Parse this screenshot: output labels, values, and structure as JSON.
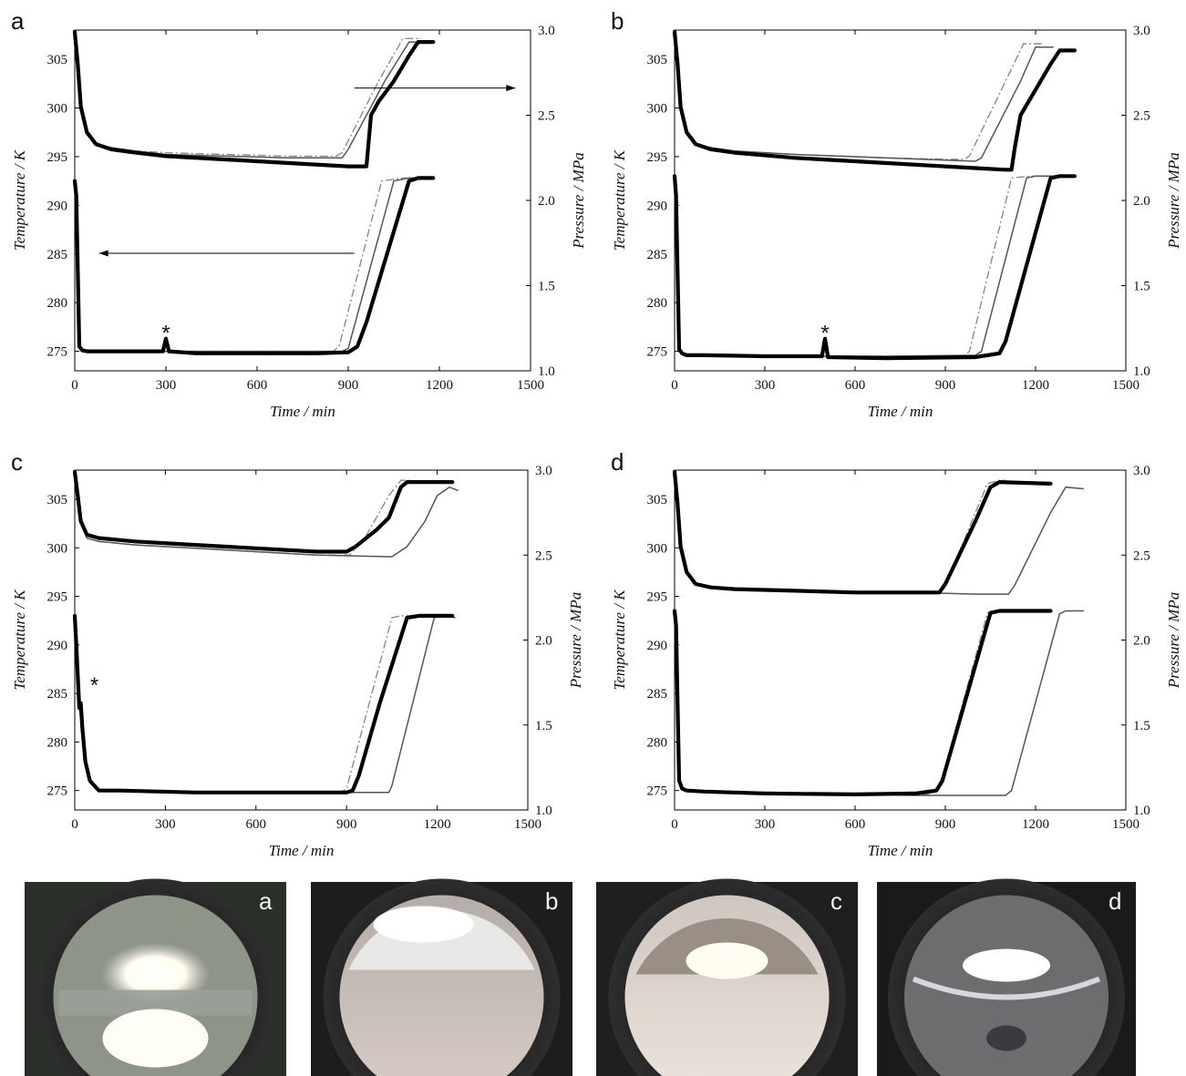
{
  "chart_data": [
    {
      "panel": "a",
      "type": "line",
      "xlabel": "Time / min",
      "ylabel_left": "Temperature / K",
      "ylabel_right": "Pressure / MPa",
      "xlim": [
        0,
        1500
      ],
      "xticks": [
        "0",
        "300",
        "600",
        "900",
        "1200",
        "1500"
      ],
      "ylim_left": [
        273,
        308
      ],
      "yticks_left": [
        "275",
        "280",
        "285",
        "290",
        "295",
        "300",
        "305"
      ],
      "ylim_right": [
        1.0,
        3.0
      ],
      "yticks_right": [
        "1.0",
        "1.5",
        "2.0",
        "2.5",
        "3.0"
      ],
      "annotations": [
        "*"
      ],
      "star_at": [
        300,
        276.5
      ],
      "arrows": [
        {
          "from": [
            920,
            2.66
          ],
          "to": [
            1450,
            2.66
          ]
        },
        {
          "from": [
            920,
            1.69
          ],
          "to": [
            80,
            1.69
          ]
        }
      ],
      "series": [
        {
          "axis": "right",
          "style": "bold",
          "x": [
            0,
            10,
            20,
            40,
            70,
            120,
            200,
            300,
            500,
            700,
            900,
            940,
            960,
            975,
            1000,
            1050,
            1100,
            1130,
            1180
          ],
          "y": [
            2.99,
            2.8,
            2.55,
            2.4,
            2.33,
            2.3,
            2.28,
            2.26,
            2.24,
            2.22,
            2.2,
            2.2,
            2.2,
            2.5,
            2.58,
            2.7,
            2.85,
            2.93,
            2.93
          ]
        },
        {
          "axis": "right",
          "style": "dash",
          "x": [
            0,
            10,
            20,
            40,
            70,
            120,
            200,
            300,
            500,
            700,
            860,
            880,
            1000,
            1080,
            1140
          ],
          "y": [
            2.99,
            2.8,
            2.55,
            2.4,
            2.33,
            2.31,
            2.29,
            2.28,
            2.27,
            2.26,
            2.26,
            2.28,
            2.7,
            2.95,
            2.95
          ]
        },
        {
          "axis": "right",
          "style": "gray",
          "x": [
            0,
            10,
            20,
            40,
            70,
            120,
            200,
            300,
            500,
            700,
            880,
            900,
            1020,
            1100,
            1150
          ],
          "y": [
            2.99,
            2.8,
            2.55,
            2.4,
            2.33,
            2.31,
            2.29,
            2.27,
            2.26,
            2.25,
            2.25,
            2.3,
            2.7,
            2.93,
            2.93
          ]
        },
        {
          "axis": "left",
          "style": "bold",
          "x": [
            0,
            5,
            15,
            25,
            40,
            100,
            200,
            290,
            300,
            310,
            400,
            600,
            800,
            900,
            930,
            960,
            1100,
            1130,
            1180
          ],
          "y": [
            292.5,
            291,
            275.5,
            275.1,
            275,
            275,
            275,
            275,
            276.3,
            275,
            274.8,
            274.8,
            274.8,
            274.9,
            275.5,
            278,
            292.5,
            292.8,
            292.8
          ]
        },
        {
          "axis": "left",
          "style": "dash",
          "x": [
            0,
            5,
            15,
            25,
            40,
            100,
            300,
            600,
            850,
            870,
            1010,
            1080,
            1140
          ],
          "y": [
            292.5,
            291,
            275.5,
            275.1,
            275,
            275,
            275,
            275,
            275,
            275.5,
            292.5,
            292.8,
            292.8
          ]
        },
        {
          "axis": "left",
          "style": "gray",
          "x": [
            0,
            5,
            15,
            25,
            40,
            100,
            300,
            600,
            880,
            900,
            1050,
            1100,
            1160
          ],
          "y": [
            292.5,
            291,
            275.5,
            275.1,
            275,
            275,
            275,
            275,
            275,
            275.3,
            292.5,
            292.8,
            292.8
          ]
        }
      ]
    },
    {
      "panel": "b",
      "type": "line",
      "xlabel": "Time / min",
      "ylabel_left": "Temperature / K",
      "ylabel_right": "Pressure / MPa",
      "xlim": [
        0,
        1500
      ],
      "xticks": [
        "0",
        "300",
        "600",
        "900",
        "1200",
        "1500"
      ],
      "ylim_left": [
        273,
        308
      ],
      "yticks_left": [
        "275",
        "280",
        "285",
        "290",
        "295",
        "300",
        "305"
      ],
      "ylim_right": [
        1.0,
        3.0
      ],
      "yticks_right": [
        "1.0",
        "1.5",
        "2.0",
        "2.5",
        "3.0"
      ],
      "annotations": [
        "*"
      ],
      "star_at": [
        500,
        276.5
      ],
      "arrows": [],
      "series": [
        {
          "axis": "right",
          "style": "bold",
          "x": [
            0,
            10,
            20,
            40,
            70,
            120,
            200,
            400,
            700,
            1000,
            1100,
            1120,
            1130,
            1150,
            1200,
            1250,
            1280,
            1330
          ],
          "y": [
            2.99,
            2.8,
            2.55,
            2.4,
            2.33,
            2.3,
            2.28,
            2.25,
            2.22,
            2.19,
            2.18,
            2.18,
            2.3,
            2.5,
            2.65,
            2.8,
            2.88,
            2.88
          ]
        },
        {
          "axis": "right",
          "style": "dash",
          "x": [
            0,
            10,
            20,
            40,
            70,
            120,
            200,
            400,
            700,
            960,
            980,
            1100,
            1160,
            1220
          ],
          "y": [
            2.99,
            2.8,
            2.55,
            2.4,
            2.33,
            2.31,
            2.29,
            2.27,
            2.25,
            2.24,
            2.26,
            2.7,
            2.92,
            2.92
          ]
        },
        {
          "axis": "right",
          "style": "gray",
          "x": [
            0,
            10,
            20,
            40,
            70,
            120,
            200,
            400,
            700,
            1000,
            1020,
            1150,
            1200,
            1260
          ],
          "y": [
            2.99,
            2.8,
            2.55,
            2.4,
            2.33,
            2.31,
            2.29,
            2.27,
            2.25,
            2.23,
            2.25,
            2.7,
            2.9,
            2.9
          ]
        },
        {
          "axis": "left",
          "style": "bold",
          "x": [
            0,
            5,
            15,
            25,
            40,
            100,
            300,
            490,
            500,
            510,
            700,
            1000,
            1080,
            1100,
            1250,
            1280,
            1330
          ],
          "y": [
            293,
            291,
            275.2,
            274.8,
            274.6,
            274.6,
            274.5,
            274.5,
            276.3,
            274.4,
            274.3,
            274.4,
            274.8,
            276,
            292.8,
            293,
            293
          ]
        },
        {
          "axis": "left",
          "style": "dash",
          "x": [
            0,
            5,
            15,
            25,
            40,
            100,
            300,
            700,
            960,
            980,
            1120,
            1180,
            1220
          ],
          "y": [
            293,
            291,
            275.2,
            274.8,
            274.6,
            274.6,
            274.5,
            274.5,
            274.5,
            275,
            292.8,
            293,
            293
          ]
        },
        {
          "axis": "left",
          "style": "gray",
          "x": [
            0,
            5,
            15,
            25,
            40,
            100,
            300,
            700,
            1000,
            1020,
            1170,
            1200,
            1260
          ],
          "y": [
            293,
            291,
            275.2,
            274.8,
            274.6,
            274.6,
            274.5,
            274.5,
            274.6,
            275,
            292.8,
            293,
            293
          ]
        }
      ]
    },
    {
      "panel": "c",
      "type": "line",
      "xlabel": "Time / min",
      "ylabel_left": "Temperature / K",
      "ylabel_right": "Pressure / MPa",
      "xlim": [
        0,
        1500
      ],
      "xticks": [
        "0",
        "300",
        "600",
        "900",
        "1200",
        "1500"
      ],
      "ylim_left": [
        273,
        308
      ],
      "yticks_left": [
        "275",
        "280",
        "285",
        "290",
        "295",
        "300",
        "305"
      ],
      "ylim_right": [
        1.0,
        3.0
      ],
      "yticks_right": [
        "1.0",
        "1.5",
        "2.0",
        "2.5",
        "3.0"
      ],
      "annotations": [
        "*"
      ],
      "star_at": [
        65,
        285.5
      ],
      "arrows": [],
      "series": [
        {
          "axis": "right",
          "style": "bold",
          "x": [
            0,
            10,
            20,
            40,
            80,
            200,
            400,
            600,
            800,
            900,
            930,
            1000,
            1040,
            1080,
            1100,
            1250
          ],
          "y": [
            2.99,
            2.85,
            2.7,
            2.62,
            2.6,
            2.58,
            2.56,
            2.54,
            2.52,
            2.52,
            2.55,
            2.65,
            2.72,
            2.9,
            2.93,
            2.93
          ]
        },
        {
          "axis": "right",
          "style": "dash",
          "x": [
            0,
            10,
            20,
            40,
            80,
            200,
            400,
            600,
            800,
            910,
            960,
            1040,
            1080,
            1120
          ],
          "y": [
            2.99,
            2.85,
            2.7,
            2.6,
            2.58,
            2.56,
            2.54,
            2.52,
            2.5,
            2.5,
            2.6,
            2.85,
            2.94,
            2.94
          ]
        },
        {
          "axis": "right",
          "style": "gray",
          "x": [
            0,
            10,
            20,
            40,
            80,
            200,
            400,
            600,
            800,
            1050,
            1100,
            1160,
            1200,
            1240,
            1270
          ],
          "y": [
            2.99,
            2.85,
            2.7,
            2.6,
            2.58,
            2.56,
            2.54,
            2.52,
            2.5,
            2.49,
            2.55,
            2.7,
            2.85,
            2.9,
            2.88
          ]
        },
        {
          "axis": "left",
          "style": "bold",
          "x": [
            0,
            5,
            15,
            20,
            25,
            35,
            50,
            80,
            150,
            400,
            700,
            900,
            920,
            940,
            1010,
            1100,
            1140,
            1250
          ],
          "y": [
            293,
            290,
            283.5,
            284,
            281.5,
            278,
            276,
            275,
            275,
            274.8,
            274.8,
            274.8,
            275,
            276.5,
            284,
            292.8,
            293,
            293
          ]
        },
        {
          "axis": "left",
          "style": "dash",
          "x": [
            0,
            5,
            15,
            25,
            35,
            50,
            80,
            150,
            400,
            700,
            880,
            900,
            1050,
            1080,
            1130
          ],
          "y": [
            293,
            290,
            283.5,
            281.5,
            278,
            276,
            275,
            275,
            274.8,
            274.8,
            274.8,
            275.2,
            292.8,
            293,
            293
          ]
        },
        {
          "axis": "left",
          "style": "gray",
          "x": [
            0,
            5,
            15,
            25,
            35,
            50,
            80,
            150,
            400,
            700,
            1000,
            1040,
            1050,
            1190,
            1220,
            1260
          ],
          "y": [
            293,
            290,
            283.5,
            281.5,
            278,
            276,
            275,
            275,
            274.8,
            274.8,
            274.8,
            274.8,
            275.5,
            292.8,
            293,
            292.8
          ]
        }
      ]
    },
    {
      "panel": "d",
      "type": "line",
      "xlabel": "Time / min",
      "ylabel_left": "Temperature / K",
      "ylabel_right": "Pressure / MPa",
      "xlim": [
        0,
        1500
      ],
      "xticks": [
        "0",
        "300",
        "600",
        "900",
        "1200",
        "1500"
      ],
      "ylim_left": [
        273,
        308
      ],
      "yticks_left": [
        "275",
        "280",
        "285",
        "290",
        "295",
        "300",
        "305"
      ],
      "ylim_right": [
        1.0,
        3.0
      ],
      "yticks_right": [
        "1.0",
        "1.5",
        "2.0",
        "2.5",
        "3.0"
      ],
      "annotations": [],
      "arrows": [],
      "series": [
        {
          "axis": "right",
          "style": "bold",
          "x": [
            0,
            10,
            20,
            40,
            70,
            120,
            200,
            400,
            600,
            800,
            880,
            900,
            1000,
            1050,
            1080,
            1250
          ],
          "y": [
            2.99,
            2.8,
            2.55,
            2.4,
            2.33,
            2.31,
            2.3,
            2.29,
            2.28,
            2.28,
            2.28,
            2.33,
            2.7,
            2.9,
            2.93,
            2.92
          ]
        },
        {
          "axis": "right",
          "style": "dash",
          "x": [
            0,
            10,
            20,
            40,
            70,
            120,
            200,
            400,
            600,
            800,
            880,
            900,
            1000,
            1040,
            1080,
            1100
          ],
          "y": [
            2.99,
            2.8,
            2.55,
            2.4,
            2.33,
            2.31,
            2.3,
            2.29,
            2.28,
            2.28,
            2.28,
            2.32,
            2.75,
            2.92,
            2.94,
            2.94
          ]
        },
        {
          "axis": "right",
          "style": "gray",
          "x": [
            0,
            10,
            20,
            40,
            70,
            120,
            200,
            400,
            600,
            800,
            1000,
            1110,
            1130,
            1250,
            1300,
            1360
          ],
          "y": [
            2.99,
            2.8,
            2.55,
            2.4,
            2.33,
            2.31,
            2.3,
            2.29,
            2.28,
            2.28,
            2.27,
            2.27,
            2.32,
            2.75,
            2.9,
            2.89
          ]
        },
        {
          "axis": "left",
          "style": "bold",
          "x": [
            0,
            5,
            15,
            25,
            40,
            100,
            300,
            600,
            800,
            870,
            890,
            1050,
            1080,
            1250
          ],
          "y": [
            293.5,
            292,
            276,
            275.2,
            275,
            274.9,
            274.7,
            274.6,
            274.7,
            275,
            276,
            293.3,
            293.5,
            293.5
          ]
        },
        {
          "axis": "left",
          "style": "dash",
          "x": [
            0,
            5,
            15,
            25,
            40,
            100,
            300,
            600,
            850,
            880,
            1040,
            1060,
            1100
          ],
          "y": [
            293.5,
            292,
            276,
            275.2,
            275,
            274.9,
            274.7,
            274.6,
            274.6,
            275.2,
            293.3,
            293.5,
            293.5
          ]
        },
        {
          "axis": "left",
          "style": "gray",
          "x": [
            0,
            5,
            15,
            25,
            40,
            100,
            300,
            600,
            800,
            1100,
            1120,
            1280,
            1300,
            1360
          ],
          "y": [
            293.5,
            292,
            276,
            275.2,
            275,
            274.9,
            274.7,
            274.6,
            274.5,
            274.5,
            275,
            293.2,
            293.5,
            293.5
          ]
        }
      ]
    }
  ],
  "photos": [
    {
      "label": "a"
    },
    {
      "label": "b"
    },
    {
      "label": "c"
    },
    {
      "label": "d"
    }
  ]
}
